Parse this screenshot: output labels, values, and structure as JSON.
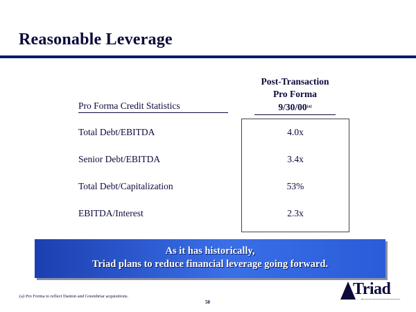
{
  "title": "Reasonable Leverage",
  "table": {
    "left_header": "Pro Forma Credit Statistics",
    "right_header_line1": "Post-Transaction",
    "right_header_line2": "Pro Forma",
    "right_header_line3": "9/30/00",
    "right_header_note": "(a)",
    "rows": [
      {
        "label": "Total Debt/EBITDA",
        "value": "4.0x"
      },
      {
        "label": "Senior Debt/EBITDA",
        "value": "3.4x"
      },
      {
        "label": "Total Debt/Capitalization",
        "value": "53%"
      },
      {
        "label": "EBITDA/Interest",
        "value": "2.3x"
      }
    ]
  },
  "banner": {
    "line1": "As it has historically,",
    "line2": "Triad plans to reduce financial leverage going forward."
  },
  "footnote": "(a)  Pro Forma to reflect Danton and Greenbriar acquisitions.",
  "page_number": "50",
  "logo": {
    "text": "Triad",
    "icon": "triangle-logo-icon"
  },
  "colors": {
    "navy": "#0b0b3b",
    "rule": "#0c1a6e",
    "banner": "#2a5bd8"
  }
}
